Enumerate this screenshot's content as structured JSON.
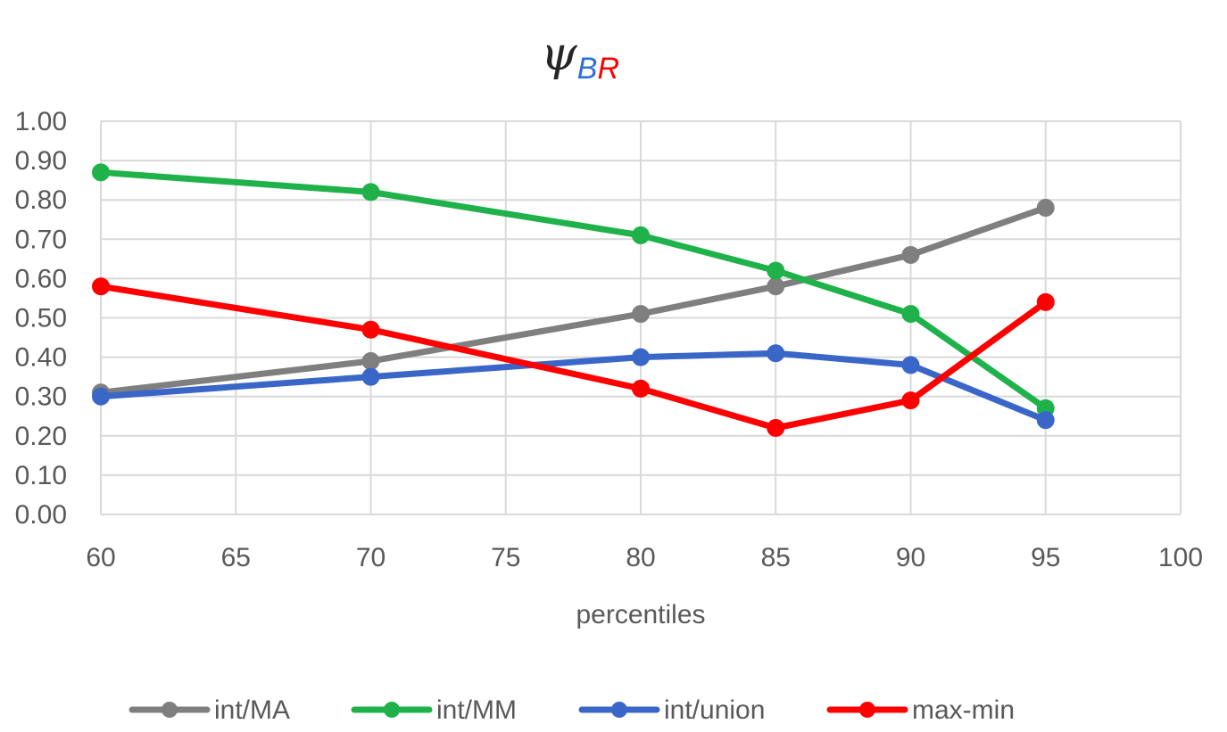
{
  "chart_data": {
    "type": "line",
    "title": {
      "main": "ψ",
      "sub_parts": [
        {
          "text": "B",
          "color": "#2E6FD8"
        },
        {
          "text": "R",
          "color": "#FF0000"
        }
      ]
    },
    "xlabel": "percentiles",
    "ylabel": "",
    "xlim": [
      60,
      100
    ],
    "ylim": [
      0,
      1
    ],
    "x_ticks": [
      "60",
      "65",
      "70",
      "75",
      "80",
      "85",
      "90",
      "95",
      "100"
    ],
    "y_ticks": [
      "0.00",
      "0.10",
      "0.20",
      "0.30",
      "0.40",
      "0.50",
      "0.60",
      "0.70",
      "0.80",
      "0.90",
      "1.00"
    ],
    "grid": true,
    "legend_position": "bottom",
    "x": [
      60,
      70,
      80,
      85,
      90,
      95
    ],
    "series": [
      {
        "name": "int/MA",
        "color": "#7F7F7F",
        "values": [
          0.31,
          0.39,
          0.51,
          0.58,
          0.66,
          0.78
        ]
      },
      {
        "name": "int/MM",
        "color": "#1FB24A",
        "values": [
          0.87,
          0.82,
          0.71,
          0.62,
          0.51,
          0.27
        ]
      },
      {
        "name": "int/union",
        "color": "#3A66C8",
        "values": [
          0.3,
          0.35,
          0.4,
          0.41,
          0.38,
          0.24
        ]
      },
      {
        "name": "max-min",
        "color": "#FF0000",
        "values": [
          0.58,
          0.47,
          0.32,
          0.22,
          0.29,
          0.54
        ]
      }
    ]
  }
}
